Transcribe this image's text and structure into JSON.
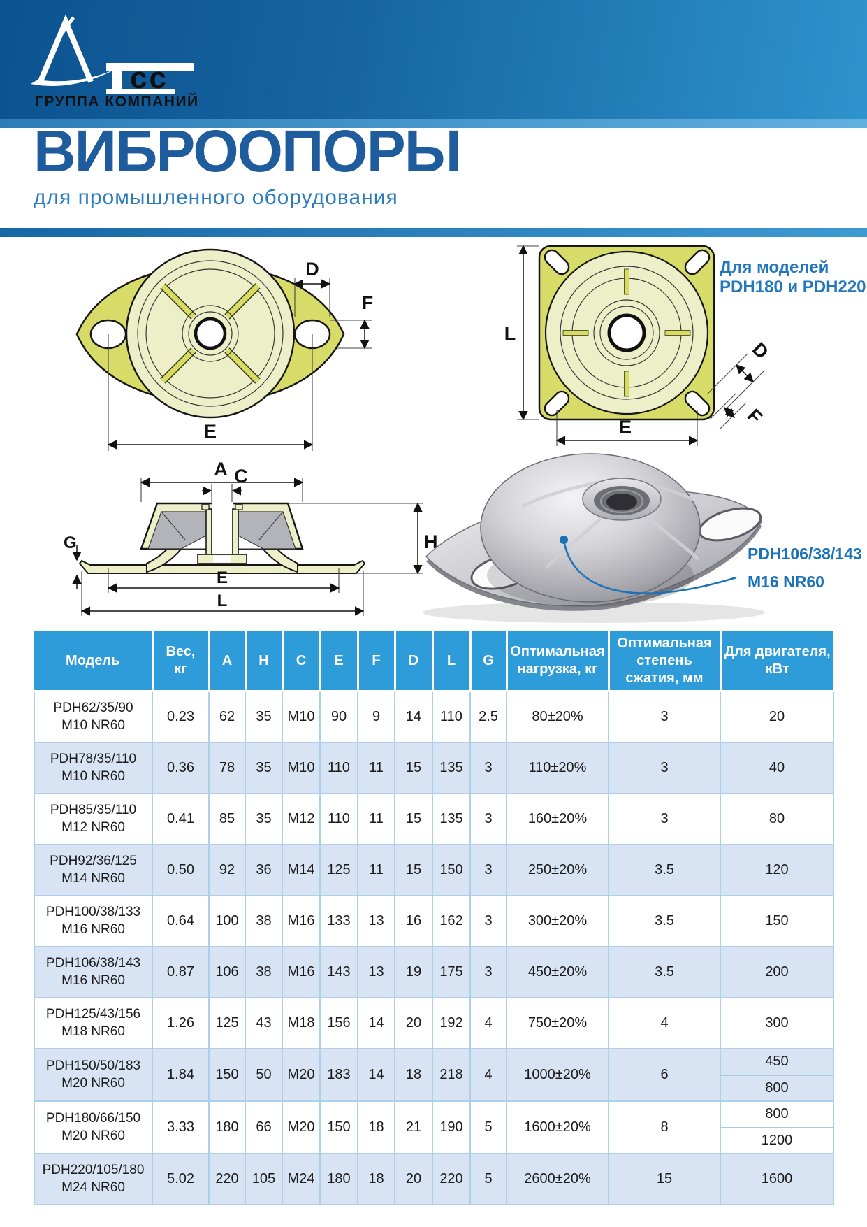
{
  "logo": {
    "brand": "Tcc",
    "brand_cc": "cc",
    "tagline": "ГРУППА КОМПАНИЙ"
  },
  "title": {
    "heading": "ВИБРООПОРЫ",
    "subheading": "для промышленного оборудования"
  },
  "colors": {
    "band_blue_dark": "#0c5390",
    "band_blue_light": "#2e93cc",
    "title_blue": "#1e5c9e",
    "subtitle_blue": "#2b7cbd",
    "accent_text_blue": "#2377bc",
    "table_header_blue": "#2e9cd9",
    "table_alt_row": "#d8e3f3",
    "table_border": "#aecfe9",
    "flange_yellow": "#d7db68",
    "dome_pale": "#edefc8"
  },
  "figures": {
    "oval": {
      "d": "D",
      "f": "F",
      "e": "E"
    },
    "square": {
      "l": "L",
      "e": "E",
      "d": "D",
      "f": "F",
      "note1": "Для моделей",
      "note2": "PDH180 и PDH220"
    },
    "section": {
      "a": "A",
      "c": "C",
      "h": "H",
      "g": "G",
      "e": "E",
      "l": "L"
    },
    "photo": {
      "callout1": "PDH106/38/143",
      "callout2": "M16 NR60"
    }
  },
  "table": {
    "headers": [
      [
        "Модель"
      ],
      [
        "Вес,",
        "кг"
      ],
      [
        "A"
      ],
      [
        "H"
      ],
      [
        "C"
      ],
      [
        "E"
      ],
      [
        "F"
      ],
      [
        "D"
      ],
      [
        "L"
      ],
      [
        "G"
      ],
      [
        "Оптимальная",
        "нагрузка, кг"
      ],
      [
        "Оптимальная",
        "степень",
        "сжатия, мм"
      ],
      [
        "Для двигателя,",
        "кВт"
      ]
    ],
    "rows": [
      {
        "model": [
          "PDH62/35/90",
          "M10 NR60"
        ],
        "values": [
          "0.23",
          "62",
          "35",
          "M10",
          "90",
          "9",
          "14",
          "110",
          "2.5",
          "80±20%",
          "3"
        ],
        "motor": [
          "20"
        ]
      },
      {
        "model": [
          "PDH78/35/110",
          "M10 NR60"
        ],
        "values": [
          "0.36",
          "78",
          "35",
          "M10",
          "110",
          "11",
          "15",
          "135",
          "3",
          "110±20%",
          "3"
        ],
        "motor": [
          "40"
        ]
      },
      {
        "model": [
          "PDH85/35/110",
          "M12 NR60"
        ],
        "values": [
          "0.41",
          "85",
          "35",
          "M12",
          "110",
          "11",
          "15",
          "135",
          "3",
          "160±20%",
          "3"
        ],
        "motor": [
          "80"
        ]
      },
      {
        "model": [
          "PDH92/36/125",
          "M14 NR60"
        ],
        "values": [
          "0.50",
          "92",
          "36",
          "M14",
          "125",
          "11",
          "15",
          "150",
          "3",
          "250±20%",
          "3.5"
        ],
        "motor": [
          "120"
        ]
      },
      {
        "model": [
          "PDH100/38/133",
          "M16 NR60"
        ],
        "values": [
          "0.64",
          "100",
          "38",
          "M16",
          "133",
          "13",
          "16",
          "162",
          "3",
          "300±20%",
          "3.5"
        ],
        "motor": [
          "150"
        ]
      },
      {
        "model": [
          "PDH106/38/143",
          "M16 NR60"
        ],
        "values": [
          "0.87",
          "106",
          "38",
          "M16",
          "143",
          "13",
          "19",
          "175",
          "3",
          "450±20%",
          "3.5"
        ],
        "motor": [
          "200"
        ]
      },
      {
        "model": [
          "PDH125/43/156",
          "M18 NR60"
        ],
        "values": [
          "1.26",
          "125",
          "43",
          "M18",
          "156",
          "14",
          "20",
          "192",
          "4",
          "750±20%",
          "4"
        ],
        "motor": [
          "300"
        ]
      },
      {
        "model": [
          "PDH150/50/183",
          "M20 NR60"
        ],
        "values": [
          "1.84",
          "150",
          "50",
          "M20",
          "183",
          "14",
          "18",
          "218",
          "4",
          "1000±20%",
          "6"
        ],
        "motor": [
          "450",
          "800"
        ]
      },
      {
        "model": [
          "PDH180/66/150",
          "M20 NR60"
        ],
        "values": [
          "3.33",
          "180",
          "66",
          "M20",
          "150",
          "18",
          "21",
          "190",
          "5",
          "1600±20%",
          "8"
        ],
        "motor": [
          "800",
          "1200"
        ]
      },
      {
        "model": [
          "PDH220/105/180",
          "M24 NR60"
        ],
        "values": [
          "5.02",
          "220",
          "105",
          "M24",
          "180",
          "18",
          "20",
          "220",
          "5",
          "2600±20%",
          "15"
        ],
        "motor": [
          "1600"
        ]
      }
    ]
  }
}
